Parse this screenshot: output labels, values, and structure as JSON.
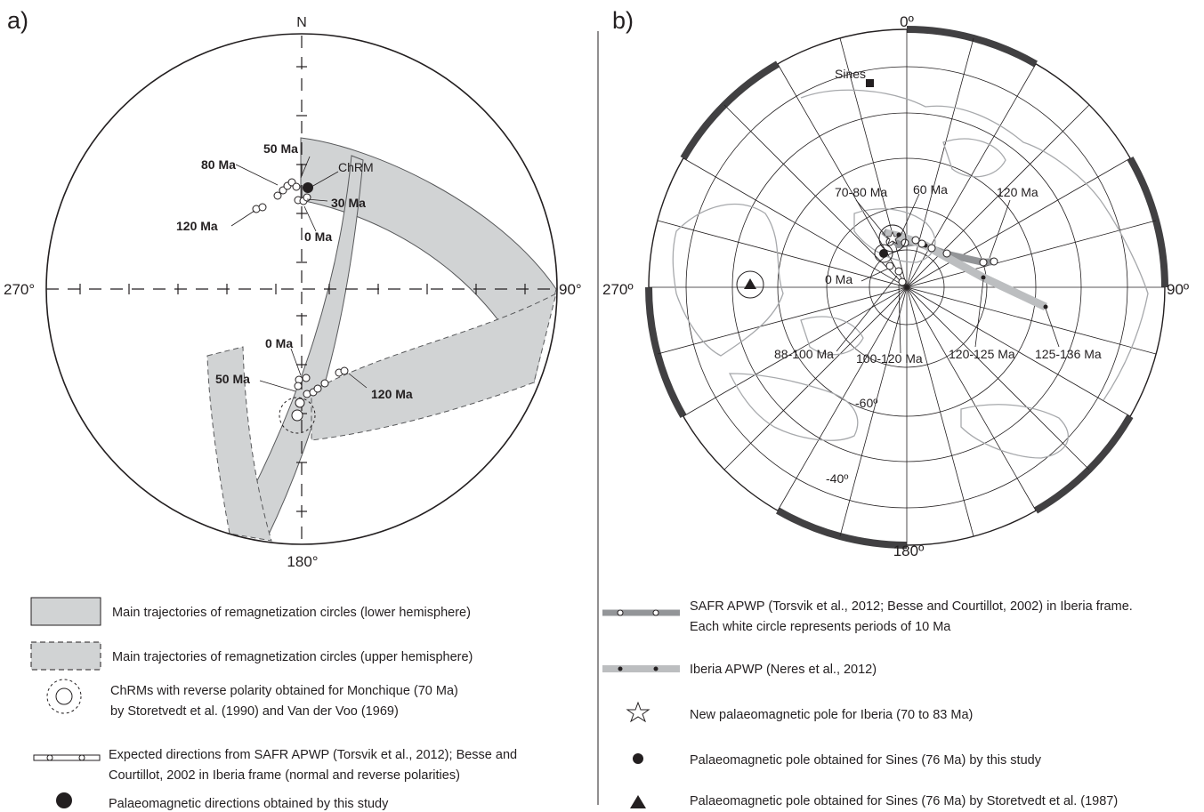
{
  "panel_a": {
    "label": "a)",
    "north": "N",
    "deg_270": "270°",
    "deg_90": "90°",
    "deg_180": "180°",
    "labels": {
      "m50_top": "50 Ma",
      "m80": "80 Ma",
      "chrm": "ChRM",
      "m30": "30 Ma",
      "m120_top": "120 Ma",
      "m0_top": "0 Ma",
      "m0_bottom": "0 Ma",
      "m50_bottom": "50 Ma",
      "m120_bottom": "120 Ma"
    }
  },
  "panel_b": {
    "label": "b)",
    "deg_0": "0º",
    "deg_270": "270º",
    "deg_90": "90º",
    "deg_180": "180º",
    "lat_60": "-60º",
    "lat_40": "-40º",
    "sines": "Sines",
    "labels": {
      "m70_80": "70-80 Ma",
      "m60": "60 Ma",
      "m120": "120 Ma",
      "m0": "0 Ma",
      "m88_100": "88-100 Ma",
      "m100_120": "100-120 Ma",
      "m120_125": "120-125 Ma",
      "m125_136": "125-136 Ma"
    }
  },
  "legend_left": [
    "Main trajectories of remagnetization circles (lower hemisphere)",
    "Main trajectories of remagnetization circles  (upper hemisphere)",
    "ChRMs with reverse polarity obtained for Monchique (70 Ma)",
    "by Storetvedt et al. (1990) and Van der Voo (1969)",
    "Expected directions from SAFR APWP (Torsvik et al., 2012); Besse and",
    "Courtillot, 2002 in Iberia frame (normal and reverse polarities)",
    "Palaeomagnetic directions obtained by this study"
  ],
  "legend_right": [
    "SAFR APWP (Torsvik et al., 2012; Besse and Courtillot, 2002) in Iberia frame.",
    "Each white circle represents periods of 10 Ma",
    "Iberia APWP (Neres et al., 2012)",
    "New palaeomagnetic pole for Iberia (70 to 83 Ma)",
    "Palaeomagnetic pole obtained for Sines (76 Ma) by this study",
    "Palaeomagnetic pole obtained for Sines (76 Ma) by Storetvedt et al. (1987)"
  ]
}
